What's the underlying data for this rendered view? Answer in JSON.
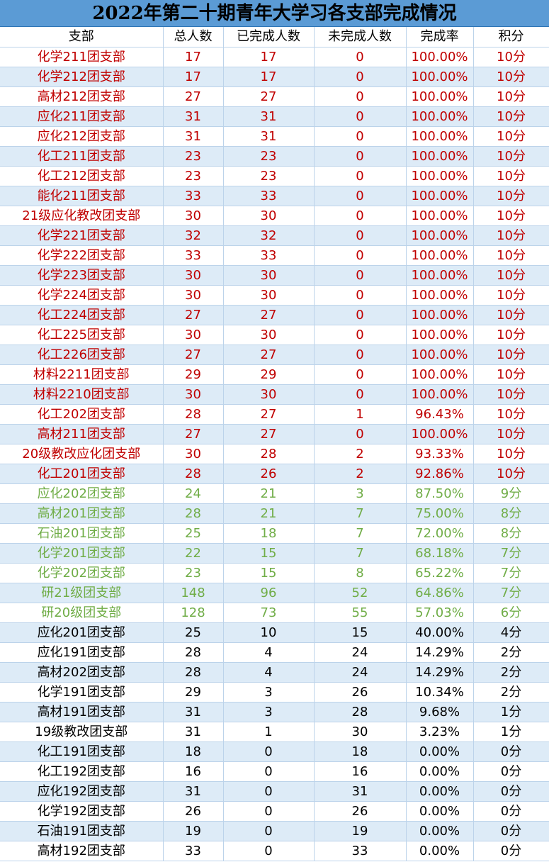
{
  "title": "2022年第二十期青年大学习各支部完成情况",
  "columns": [
    "支部",
    "总人数",
    "已完成人数",
    "未完成人数",
    "完成率",
    "积分"
  ],
  "colors": {
    "high": "#c00000",
    "mid": "#70ad47",
    "low": "#000000",
    "header_bg": "#5b9bd5",
    "stripe": "#ddebf7"
  },
  "rows": [
    {
      "branch": "化学211团支部",
      "total": "17",
      "done": "17",
      "undone": "0",
      "rate": "100.00%",
      "score": "10分",
      "tier": "red"
    },
    {
      "branch": "化学212团支部",
      "total": "17",
      "done": "17",
      "undone": "0",
      "rate": "100.00%",
      "score": "10分",
      "tier": "red"
    },
    {
      "branch": "高材212团支部",
      "total": "27",
      "done": "27",
      "undone": "0",
      "rate": "100.00%",
      "score": "10分",
      "tier": "red"
    },
    {
      "branch": "应化211团支部",
      "total": "31",
      "done": "31",
      "undone": "0",
      "rate": "100.00%",
      "score": "10分",
      "tier": "red"
    },
    {
      "branch": "应化212团支部",
      "total": "31",
      "done": "31",
      "undone": "0",
      "rate": "100.00%",
      "score": "10分",
      "tier": "red"
    },
    {
      "branch": "化工211团支部",
      "total": "23",
      "done": "23",
      "undone": "0",
      "rate": "100.00%",
      "score": "10分",
      "tier": "red"
    },
    {
      "branch": "化工212团支部",
      "total": "23",
      "done": "23",
      "undone": "0",
      "rate": "100.00%",
      "score": "10分",
      "tier": "red"
    },
    {
      "branch": "能化211团支部",
      "total": "33",
      "done": "33",
      "undone": "0",
      "rate": "100.00%",
      "score": "10分",
      "tier": "red"
    },
    {
      "branch": "21级应化教改团支部",
      "total": "30",
      "done": "30",
      "undone": "0",
      "rate": "100.00%",
      "score": "10分",
      "tier": "red"
    },
    {
      "branch": "化学221团支部",
      "total": "32",
      "done": "32",
      "undone": "0",
      "rate": "100.00%",
      "score": "10分",
      "tier": "red"
    },
    {
      "branch": "化学222团支部",
      "total": "33",
      "done": "33",
      "undone": "0",
      "rate": "100.00%",
      "score": "10分",
      "tier": "red"
    },
    {
      "branch": "化学223团支部",
      "total": "30",
      "done": "30",
      "undone": "0",
      "rate": "100.00%",
      "score": "10分",
      "tier": "red"
    },
    {
      "branch": "化学224团支部",
      "total": "30",
      "done": "30",
      "undone": "0",
      "rate": "100.00%",
      "score": "10分",
      "tier": "red"
    },
    {
      "branch": "化工224团支部",
      "total": "27",
      "done": "27",
      "undone": "0",
      "rate": "100.00%",
      "score": "10分",
      "tier": "red"
    },
    {
      "branch": "化工225团支部",
      "total": "30",
      "done": "30",
      "undone": "0",
      "rate": "100.00%",
      "score": "10分",
      "tier": "red"
    },
    {
      "branch": "化工226团支部",
      "total": "27",
      "done": "27",
      "undone": "0",
      "rate": "100.00%",
      "score": "10分",
      "tier": "red"
    },
    {
      "branch": "材料2211团支部",
      "total": "29",
      "done": "29",
      "undone": "0",
      "rate": "100.00%",
      "score": "10分",
      "tier": "red"
    },
    {
      "branch": "材料2210团支部",
      "total": "30",
      "done": "30",
      "undone": "0",
      "rate": "100.00%",
      "score": "10分",
      "tier": "red"
    },
    {
      "branch": "化工202团支部",
      "total": "28",
      "done": "27",
      "undone": "1",
      "rate": "96.43%",
      "score": "10分",
      "tier": "red"
    },
    {
      "branch": "高材211团支部",
      "total": "27",
      "done": "27",
      "undone": "0",
      "rate": "100.00%",
      "score": "10分",
      "tier": "red"
    },
    {
      "branch": "20级教改应化团支部",
      "total": "30",
      "done": "28",
      "undone": "2",
      "rate": "93.33%",
      "score": "10分",
      "tier": "red"
    },
    {
      "branch": "化工201团支部",
      "total": "28",
      "done": "26",
      "undone": "2",
      "rate": "92.86%",
      "score": "10分",
      "tier": "red"
    },
    {
      "branch": "应化202团支部",
      "total": "24",
      "done": "21",
      "undone": "3",
      "rate": "87.50%",
      "score": "9分",
      "tier": "green"
    },
    {
      "branch": "高材201团支部",
      "total": "28",
      "done": "21",
      "undone": "7",
      "rate": "75.00%",
      "score": "8分",
      "tier": "green"
    },
    {
      "branch": "石油201团支部",
      "total": "25",
      "done": "18",
      "undone": "7",
      "rate": "72.00%",
      "score": "8分",
      "tier": "green"
    },
    {
      "branch": "化学201团支部",
      "total": "22",
      "done": "15",
      "undone": "7",
      "rate": "68.18%",
      "score": "7分",
      "tier": "green"
    },
    {
      "branch": "化学202团支部",
      "total": "23",
      "done": "15",
      "undone": "8",
      "rate": "65.22%",
      "score": "7分",
      "tier": "green"
    },
    {
      "branch": "研21级团支部",
      "total": "148",
      "done": "96",
      "undone": "52",
      "rate": "64.86%",
      "score": "7分",
      "tier": "green"
    },
    {
      "branch": "研20级团支部",
      "total": "128",
      "done": "73",
      "undone": "55",
      "rate": "57.03%",
      "score": "6分",
      "tier": "green"
    },
    {
      "branch": "应化201团支部",
      "total": "25",
      "done": "10",
      "undone": "15",
      "rate": "40.00%",
      "score": "4分",
      "tier": "black"
    },
    {
      "branch": "应化191团支部",
      "total": "28",
      "done": "4",
      "undone": "24",
      "rate": "14.29%",
      "score": "2分",
      "tier": "black"
    },
    {
      "branch": "高材202团支部",
      "total": "28",
      "done": "4",
      "undone": "24",
      "rate": "14.29%",
      "score": "2分",
      "tier": "black"
    },
    {
      "branch": "化学191团支部",
      "total": "29",
      "done": "3",
      "undone": "26",
      "rate": "10.34%",
      "score": "2分",
      "tier": "black"
    },
    {
      "branch": "高材191团支部",
      "total": "31",
      "done": "3",
      "undone": "28",
      "rate": "9.68%",
      "score": "1分",
      "tier": "black"
    },
    {
      "branch": "19级教改团支部",
      "total": "31",
      "done": "1",
      "undone": "30",
      "rate": "3.23%",
      "score": "1分",
      "tier": "black"
    },
    {
      "branch": "化工191团支部",
      "total": "18",
      "done": "0",
      "undone": "18",
      "rate": "0.00%",
      "score": "0分",
      "tier": "black"
    },
    {
      "branch": "化工192团支部",
      "total": "16",
      "done": "0",
      "undone": "16",
      "rate": "0.00%",
      "score": "0分",
      "tier": "black"
    },
    {
      "branch": "应化192团支部",
      "total": "31",
      "done": "0",
      "undone": "31",
      "rate": "0.00%",
      "score": "0分",
      "tier": "black"
    },
    {
      "branch": "化学192团支部",
      "total": "26",
      "done": "0",
      "undone": "26",
      "rate": "0.00%",
      "score": "0分",
      "tier": "black"
    },
    {
      "branch": "石油191团支部",
      "total": "19",
      "done": "0",
      "undone": "19",
      "rate": "0.00%",
      "score": "0分",
      "tier": "black"
    },
    {
      "branch": "高材192团支部",
      "total": "33",
      "done": "0",
      "undone": "33",
      "rate": "0.00%",
      "score": "0分",
      "tier": "black"
    }
  ]
}
